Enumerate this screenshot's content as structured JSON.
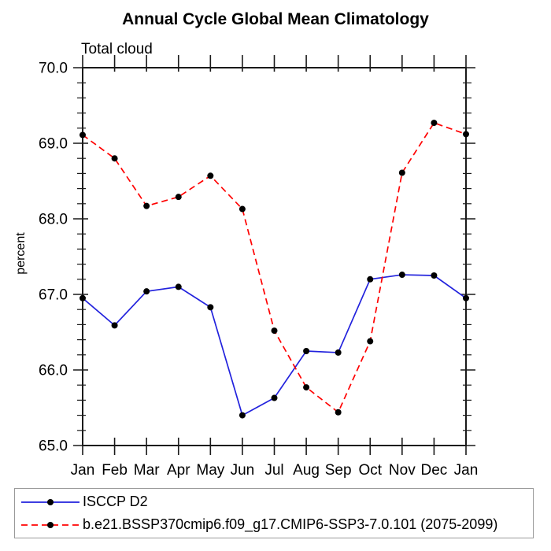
{
  "window": {
    "background": "#ffffff"
  },
  "chart_data": {
    "type": "line",
    "title": "Annual Cycle Global Mean Climatology",
    "subtitle": "Total cloud",
    "xlabel": "",
    "ylabel": "percent",
    "categories": [
      "Jan",
      "Feb",
      "Mar",
      "Apr",
      "May",
      "Jun",
      "Jul",
      "Aug",
      "Sep",
      "Oct",
      "Nov",
      "Dec",
      "Jan"
    ],
    "ylim": [
      65.0,
      70.0
    ],
    "ytick_interval": 1.0,
    "yminor_interval": 0.2,
    "ytick_labels": [
      "65.0",
      "66.0",
      "67.0",
      "68.0",
      "69.0",
      "70.0"
    ],
    "grid": false,
    "legend_position": "bottom-outside",
    "axis_color": "#1a1a1a",
    "marker": "filled-circle",
    "marker_color": "#000000",
    "series": [
      {
        "name": "ISCCP D2",
        "color": "#2222dd",
        "style": "solid",
        "values": [
          66.95,
          66.59,
          67.04,
          67.1,
          66.83,
          65.4,
          65.63,
          66.25,
          66.23,
          67.2,
          67.26,
          67.25,
          66.95
        ]
      },
      {
        "name": "b.e21.BSSP370cmip6.f09_g17.CMIP6-SSP3-7.0.101 (2075-2099)",
        "color": "#ff0000",
        "style": "dashed",
        "values": [
          69.11,
          68.8,
          68.17,
          68.29,
          68.57,
          68.13,
          66.52,
          65.77,
          65.44,
          66.38,
          68.61,
          69.27,
          69.12
        ]
      }
    ]
  }
}
